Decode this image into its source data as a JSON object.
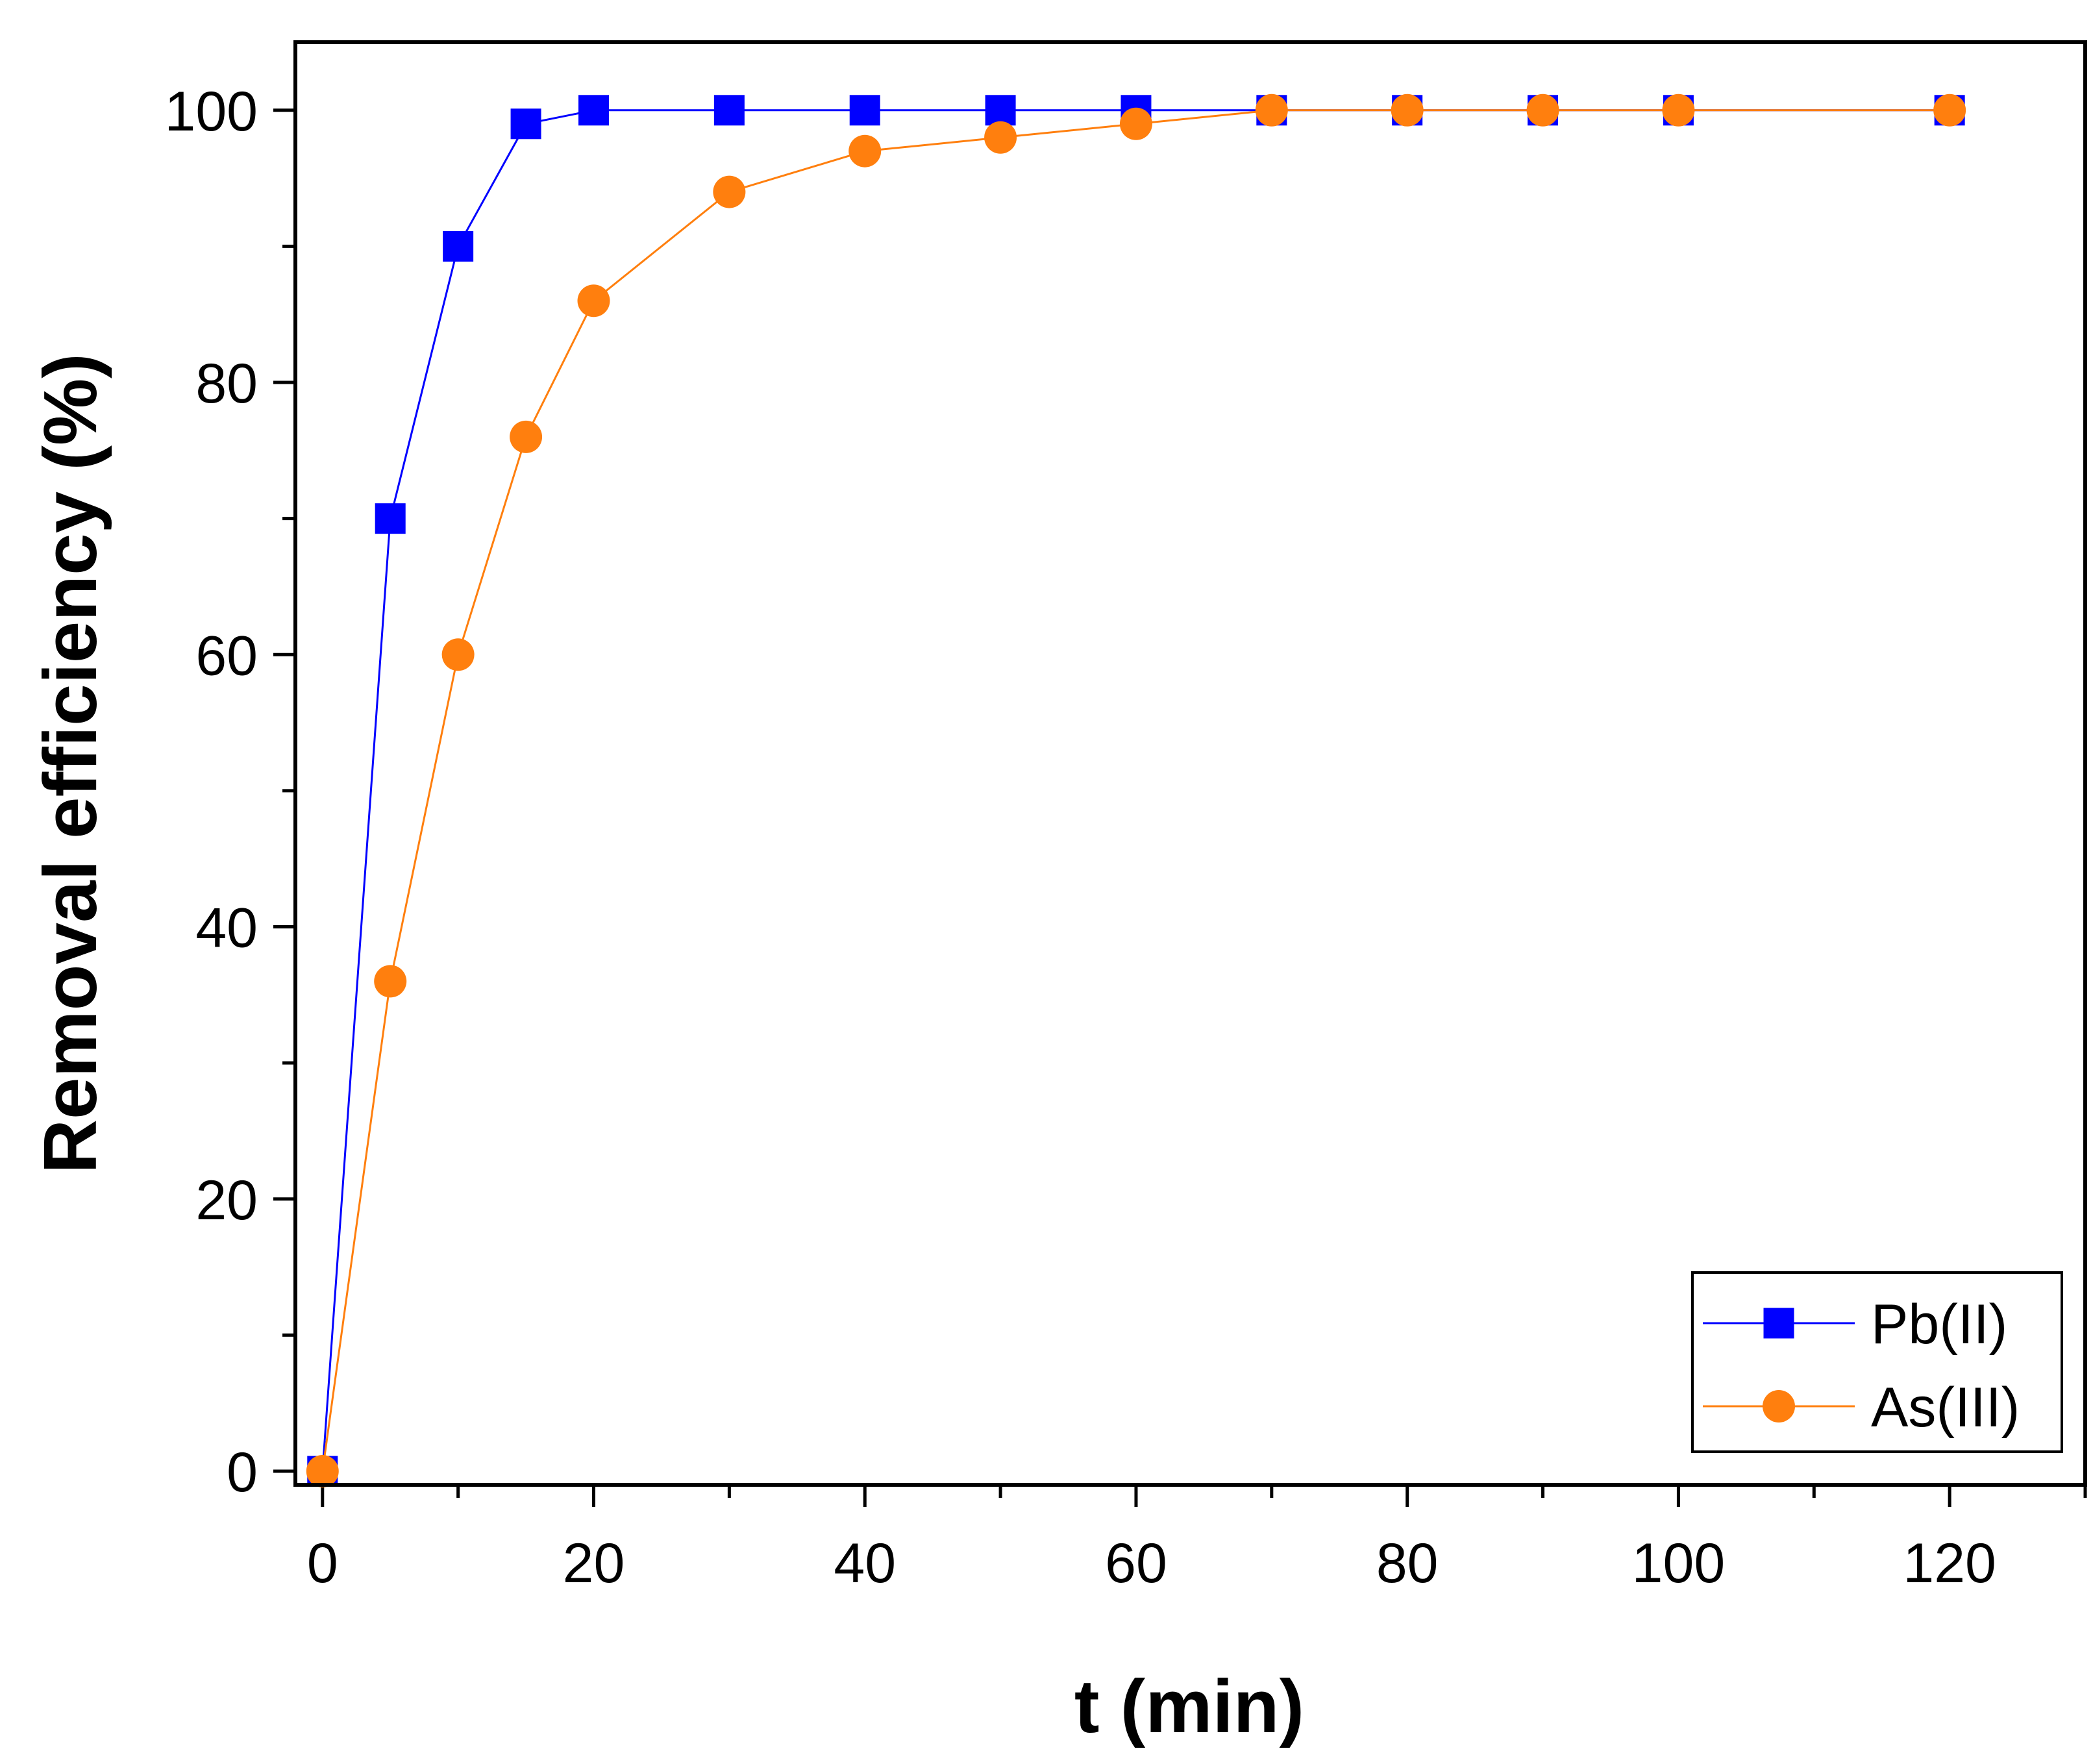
{
  "chart_data": {
    "type": "line",
    "title": "",
    "xlabel": "t (min)",
    "ylabel": "Removal efficiency (%)",
    "xlim": [
      -2,
      130
    ],
    "ylim": [
      -1,
      105
    ],
    "xticks": [
      0,
      20,
      40,
      60,
      80,
      100,
      120
    ],
    "xticks_minor": [
      10,
      30,
      50,
      70,
      90,
      110,
      130
    ],
    "yticks": [
      0,
      20,
      40,
      60,
      80,
      100
    ],
    "yticks_minor": [
      10,
      30,
      50,
      70,
      90
    ],
    "grid": false,
    "legend_position": "bottom-right",
    "series": [
      {
        "name": "Pb(II)",
        "color": "#0000FF",
        "marker": "square",
        "x": [
          0,
          5,
          10,
          15,
          20,
          30,
          40,
          50,
          60,
          70,
          80,
          90,
          100,
          120
        ],
        "y": [
          0,
          70,
          90,
          99,
          100,
          100,
          100,
          100,
          100,
          100,
          100,
          100,
          100,
          100
        ]
      },
      {
        "name": "As(III)",
        "color": "#FF7F0E",
        "marker": "circle",
        "x": [
          0,
          5,
          10,
          15,
          20,
          30,
          40,
          50,
          60,
          70,
          80,
          90,
          100,
          120
        ],
        "y": [
          0,
          36,
          60,
          76,
          86,
          94,
          97,
          98,
          99,
          100,
          100,
          100,
          100,
          100
        ]
      }
    ]
  }
}
